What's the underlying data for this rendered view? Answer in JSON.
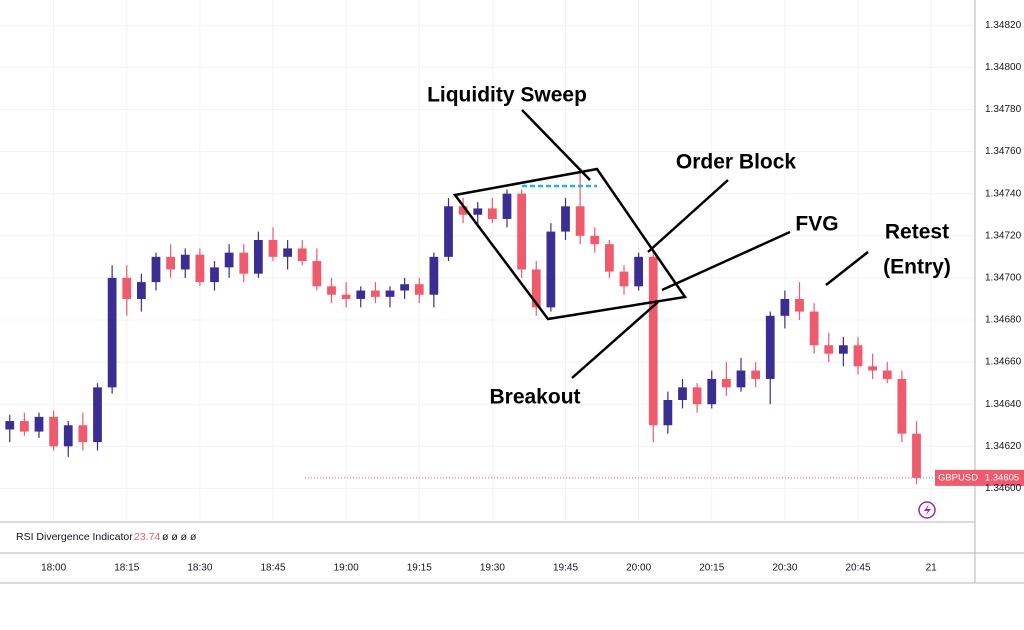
{
  "chart_data": {
    "type": "candlestick",
    "symbol": "GBPUSD",
    "last_price": {
      "value": 1.34605,
      "label": "1.34605"
    },
    "up_color": "#3b2e93",
    "down_color": "#ef5a6c",
    "grid": true,
    "xlim": [
      "17:49",
      "21:09"
    ],
    "ylim": [
      1.34585,
      1.34832
    ],
    "yticks": [
      {
        "value": 1.346,
        "label": "1.34600"
      },
      {
        "value": 1.3462,
        "label": "1.34620"
      },
      {
        "value": 1.3464,
        "label": "1.34640"
      },
      {
        "value": 1.3466,
        "label": "1.34660"
      },
      {
        "value": 1.3468,
        "label": "1.34680"
      },
      {
        "value": 1.347,
        "label": "1.34700"
      },
      {
        "value": 1.3472,
        "label": "1.34720"
      },
      {
        "value": 1.3474,
        "label": "1.34740"
      },
      {
        "value": 1.3476,
        "label": "1.34760"
      },
      {
        "value": 1.3478,
        "label": "1.34780"
      },
      {
        "value": 1.348,
        "label": "1.34800"
      },
      {
        "value": 1.3482,
        "label": "1.34820"
      }
    ],
    "xticks": [
      "18:00",
      "18:15",
      "18:30",
      "18:45",
      "19:00",
      "19:15",
      "19:30",
      "19:45",
      "20:00",
      "20:15",
      "20:30",
      "20:45",
      {
        "value": "21:00",
        "label": "21"
      }
    ],
    "x": [
      "17:51",
      "17:54",
      "17:57",
      "18:00",
      "18:03",
      "18:06",
      "18:09",
      "18:12",
      "18:15",
      "18:18",
      "18:21",
      "18:24",
      "18:27",
      "18:30",
      "18:33",
      "18:36",
      "18:39",
      "18:42",
      "18:45",
      "18:48",
      "18:51",
      "18:54",
      "18:57",
      "19:00",
      "19:03",
      "19:06",
      "19:09",
      "19:12",
      "19:15",
      "19:18",
      "19:21",
      "19:24",
      "19:27",
      "19:30",
      "19:33",
      "19:36",
      "19:39",
      "19:42",
      "19:45",
      "19:48",
      "19:51",
      "19:54",
      "19:57",
      "20:00",
      "20:03",
      "20:06",
      "20:09",
      "20:12",
      "20:15",
      "20:18",
      "20:21",
      "20:24",
      "20:27",
      "20:30",
      "20:33",
      "20:36",
      "20:39",
      "20:42",
      "20:45",
      "20:48",
      "20:51",
      "20:54",
      "20:57"
    ],
    "open": [
      1.34628,
      1.34632,
      1.34627,
      1.34634,
      1.3462,
      1.3463,
      1.34622,
      1.34648,
      1.347,
      1.3469,
      1.34698,
      1.3471,
      1.34704,
      1.34711,
      1.34698,
      1.34705,
      1.34712,
      1.34702,
      1.34718,
      1.3471,
      1.34714,
      1.34708,
      1.34696,
      1.34692,
      1.3469,
      1.34694,
      1.34691,
      1.34694,
      1.34697,
      1.34692,
      1.3471,
      1.34734,
      1.3473,
      1.34733,
      1.34728,
      1.3474,
      1.34704,
      1.34686,
      1.34722,
      1.34734,
      1.3472,
      1.34716,
      1.34703,
      1.34696,
      1.3471,
      1.3463,
      1.34642,
      1.34648,
      1.3464,
      1.34652,
      1.34648,
      1.34656,
      1.34652,
      1.34682,
      1.3469,
      1.34684,
      1.34668,
      1.34664,
      1.34668,
      1.34658,
      1.34656,
      1.34652,
      1.34626
    ],
    "high": [
      1.34635,
      1.34636,
      1.34636,
      1.34637,
      1.34632,
      1.34636,
      1.3465,
      1.34706,
      1.34706,
      1.34702,
      1.34712,
      1.34716,
      1.34714,
      1.34714,
      1.34708,
      1.34716,
      1.34716,
      1.34722,
      1.34724,
      1.34718,
      1.34718,
      1.34714,
      1.347,
      1.34698,
      1.34696,
      1.34698,
      1.34696,
      1.347,
      1.347,
      1.34712,
      1.34738,
      1.34738,
      1.34736,
      1.34738,
      1.34742,
      1.34742,
      1.34708,
      1.34726,
      1.34738,
      1.34752,
      1.34724,
      1.34718,
      1.34706,
      1.34712,
      1.34712,
      1.34646,
      1.34652,
      1.3465,
      1.34656,
      1.3466,
      1.34662,
      1.3466,
      1.34684,
      1.34694,
      1.34698,
      1.34688,
      1.34674,
      1.34672,
      1.34672,
      1.34664,
      1.3466,
      1.34656,
      1.34632
    ],
    "low": [
      1.34622,
      1.34625,
      1.34624,
      1.34618,
      1.34615,
      1.34618,
      1.34618,
      1.34645,
      1.34682,
      1.34684,
      1.34694,
      1.347,
      1.347,
      1.34696,
      1.34694,
      1.347,
      1.34698,
      1.347,
      1.34708,
      1.34704,
      1.34706,
      1.34694,
      1.34688,
      1.34686,
      1.34686,
      1.34688,
      1.34686,
      1.3469,
      1.34688,
      1.34686,
      1.34708,
      1.34726,
      1.34724,
      1.34726,
      1.34724,
      1.347,
      1.34682,
      1.34684,
      1.34718,
      1.34716,
      1.34712,
      1.347,
      1.34692,
      1.34694,
      1.34622,
      1.34626,
      1.34638,
      1.34636,
      1.34638,
      1.34644,
      1.34646,
      1.34648,
      1.3464,
      1.34676,
      1.3468,
      1.34664,
      1.3466,
      1.34658,
      1.34654,
      1.34652,
      1.3465,
      1.34622,
      1.34602
    ],
    "close": [
      1.34632,
      1.34627,
      1.34634,
      1.3462,
      1.3463,
      1.34622,
      1.34648,
      1.347,
      1.3469,
      1.34698,
      1.3471,
      1.34704,
      1.34711,
      1.34698,
      1.34705,
      1.34712,
      1.34702,
      1.34718,
      1.3471,
      1.34714,
      1.34708,
      1.34696,
      1.34692,
      1.3469,
      1.34694,
      1.34691,
      1.34694,
      1.34697,
      1.34692,
      1.3471,
      1.34734,
      1.3473,
      1.34733,
      1.34728,
      1.3474,
      1.34704,
      1.34686,
      1.34722,
      1.34734,
      1.3472,
      1.34716,
      1.34703,
      1.34696,
      1.3471,
      1.3463,
      1.34642,
      1.34648,
      1.3464,
      1.34652,
      1.34648,
      1.34656,
      1.34652,
      1.34682,
      1.3469,
      1.34684,
      1.34668,
      1.34664,
      1.34668,
      1.34658,
      1.34656,
      1.34652,
      1.34626,
      1.34605
    ],
    "indicator": {
      "name": "RSI Divergence Indicator",
      "value": 23.74,
      "placeholders": "ø ø ø ø"
    },
    "annotations": [
      "Liquidity Sweep",
      "Order Block",
      "FVG",
      "Retest",
      "(Entry)",
      "Breakout"
    ]
  }
}
